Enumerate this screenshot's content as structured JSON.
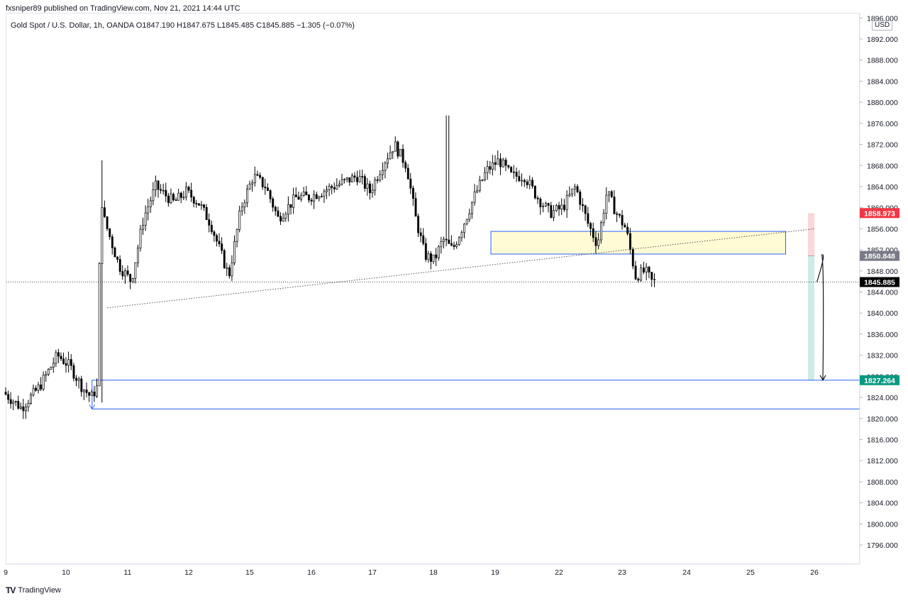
{
  "header": {
    "published": "fxsniper89 published on TradingView.com, Nov 21, 2021 14:44 UTC",
    "symbol_line": "Gold Spot / U.S. Dollar, 1h, OANDA  O1847.190  H1847.675  L1845.485  C1845.885  −1.305 (−0.07%)"
  },
  "axis": {
    "currency": "USD",
    "y_ticks": [
      "1896.000",
      "1892.000",
      "1888.000",
      "1884.000",
      "1880.000",
      "1876.000",
      "1872.000",
      "1868.000",
      "1864.000",
      "1860.000",
      "1856.000",
      "1852.000",
      "1848.000",
      "1844.000",
      "1840.000",
      "1836.000",
      "1832.000",
      "1828.000",
      "1824.000",
      "1820.000",
      "1816.000",
      "1812.000",
      "1808.000",
      "1804.000",
      "1800.000",
      "1796.000"
    ],
    "x_ticks": [
      "9",
      "10",
      "11",
      "12",
      "15",
      "16",
      "17",
      "18",
      "19",
      "22",
      "23",
      "24",
      "25",
      "26"
    ]
  },
  "price_tags": [
    {
      "label": "1858.973",
      "color": "#f23645"
    },
    {
      "label": "1850.848",
      "color": "#787b86"
    },
    {
      "label": "1845.885",
      "color": "#000000"
    },
    {
      "label": "1827.264",
      "color": "#089981"
    }
  ],
  "footer": {
    "brand": "TradingView"
  },
  "chart_data": {
    "type": "candlestick",
    "symbol": "Gold Spot / U.S. Dollar",
    "timeframe": "1h",
    "exchange": "OANDA",
    "last_bar": {
      "open": 1847.19,
      "high": 1847.675,
      "low": 1845.485,
      "close": 1845.885,
      "change": -1.305,
      "change_pct": -0.07
    },
    "ylim": [
      1793,
      1897
    ],
    "y_tick_step": 4,
    "grid": false,
    "path_points": [
      {
        "day": 9.0,
        "price": 1825
      },
      {
        "day": 9.3,
        "price": 1822
      },
      {
        "day": 9.6,
        "price": 1826
      },
      {
        "day": 9.9,
        "price": 1832
      },
      {
        "day": 10.1,
        "price": 1830
      },
      {
        "day": 10.3,
        "price": 1826
      },
      {
        "day": 10.45,
        "price": 1824
      },
      {
        "day": 10.55,
        "price": 1826
      },
      {
        "day": 10.6,
        "price": 1860
      },
      {
        "day": 10.9,
        "price": 1849
      },
      {
        "day": 11.1,
        "price": 1846
      },
      {
        "day": 11.3,
        "price": 1858
      },
      {
        "day": 11.5,
        "price": 1864
      },
      {
        "day": 11.8,
        "price": 1861
      },
      {
        "day": 12.0,
        "price": 1863
      },
      {
        "day": 12.2,
        "price": 1861
      },
      {
        "day": 12.4,
        "price": 1857
      },
      {
        "day": 12.55,
        "price": 1852
      },
      {
        "day": 12.7,
        "price": 1847
      },
      {
        "day": 12.9,
        "price": 1860
      },
      {
        "day": 13.1,
        "price": 1866
      },
      {
        "day": 13.3,
        "price": 1864
      },
      {
        "day": 13.5,
        "price": 1858
      },
      {
        "day": 13.8,
        "price": 1862
      },
      {
        "day": 14.0,
        "price": 1862
      },
      {
        "day": 14.4,
        "price": 1864
      },
      {
        "day": 14.8,
        "price": 1866
      },
      {
        "day": 15.0,
        "price": 1863
      },
      {
        "day": 15.2,
        "price": 1868
      },
      {
        "day": 15.4,
        "price": 1872
      },
      {
        "day": 15.6,
        "price": 1868
      },
      {
        "day": 15.75,
        "price": 1858
      },
      {
        "day": 15.9,
        "price": 1851
      },
      {
        "day": 16.05,
        "price": 1850
      },
      {
        "day": 16.2,
        "price": 1854
      },
      {
        "day": 16.35,
        "price": 1852
      },
      {
        "day": 16.5,
        "price": 1856
      },
      {
        "day": 16.7,
        "price": 1862
      },
      {
        "day": 16.9,
        "price": 1867
      },
      {
        "day": 17.1,
        "price": 1869
      },
      {
        "day": 17.3,
        "price": 1866
      },
      {
        "day": 17.5,
        "price": 1866
      },
      {
        "day": 17.7,
        "price": 1862
      },
      {
        "day": 17.9,
        "price": 1859
      },
      {
        "day": 18.1,
        "price": 1860
      },
      {
        "day": 18.3,
        "price": 1864
      },
      {
        "day": 18.5,
        "price": 1857
      },
      {
        "day": 18.65,
        "price": 1853
      },
      {
        "day": 18.8,
        "price": 1863
      },
      {
        "day": 18.95,
        "price": 1859
      },
      {
        "day": 19.1,
        "price": 1856
      },
      {
        "day": 19.25,
        "price": 1847
      },
      {
        "day": 19.4,
        "price": 1848
      },
      {
        "day": 19.5,
        "price": 1846
      }
    ],
    "drawings": {
      "supply_zone": {
        "top": 1855.5,
        "bottom": 1851.2,
        "from_day": 17.0,
        "to_day": 21.55
      },
      "trend_line": {
        "from": {
          "day": 10.6,
          "price": 1841
        },
        "to": {
          "day": 21.9,
          "price": 1856
        }
      },
      "short_position": {
        "entry": 1850.848,
        "stop": 1858.973,
        "target": 1827.264,
        "from_day": 21.9,
        "to_day": 23.7
      },
      "demand_zone": {
        "top": 1827.264,
        "bottom": 1821.8,
        "from_day": 10.4
      },
      "projected_path": {
        "start": {
          "day": 21.95,
          "price": 1845.885
        },
        "peak": {
          "day": 22.2,
          "price": 1851.0
        },
        "end": {
          "day": 22.5,
          "price": 1827.264
        }
      },
      "current_price_line": 1845.885
    }
  }
}
